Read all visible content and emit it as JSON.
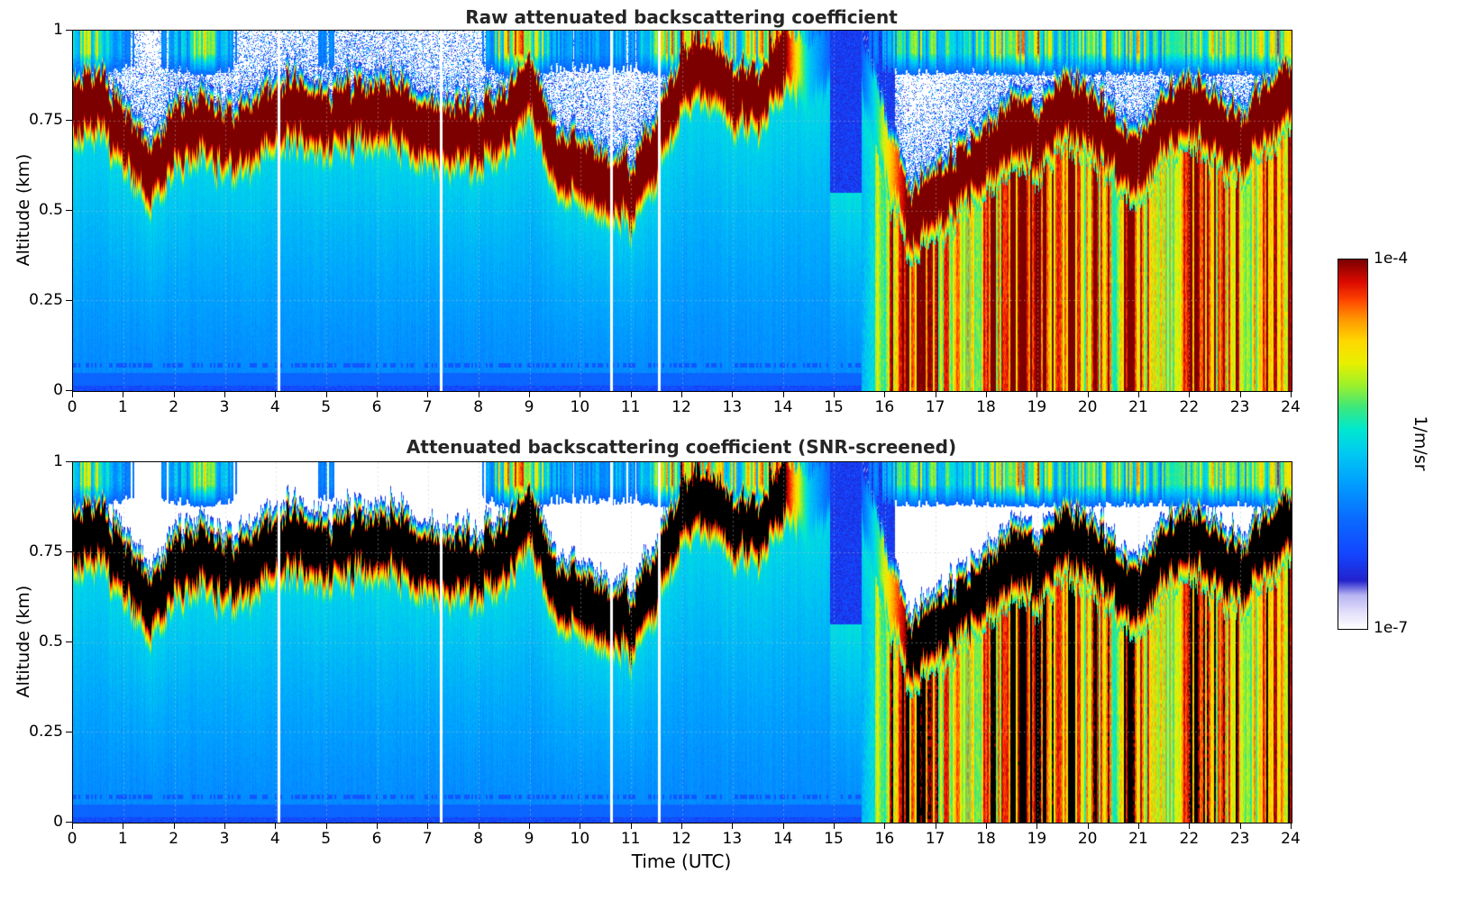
{
  "panels": [
    {
      "id": "raw",
      "title": "Raw attenuated backscattering coefficient"
    },
    {
      "id": "screened",
      "title": "Attenuated backscattering coefficient (SNR-screened)"
    }
  ],
  "axes": {
    "xlabel": "Time (UTC)",
    "ylabel": "Altitude (km)",
    "x_range": [
      0,
      24
    ],
    "y_range": [
      0,
      1
    ],
    "x_ticks": [
      0,
      1,
      2,
      3,
      4,
      5,
      6,
      7,
      8,
      9,
      10,
      11,
      12,
      13,
      14,
      15,
      16,
      17,
      18,
      19,
      20,
      21,
      22,
      23,
      24
    ],
    "y_ticks": [
      {
        "value": 1,
        "label": "1"
      },
      {
        "value": 0.75,
        "label": "0.75"
      },
      {
        "value": 0.5,
        "label": "0.5"
      },
      {
        "value": 0.25,
        "label": "0.25"
      },
      {
        "value": 0,
        "label": "0"
      }
    ],
    "grid": "dotted, every hour in x and every 0.25 km in y"
  },
  "colorbar": {
    "label": "1/m/sr",
    "top_label": "1e-4",
    "bottom_label": "1e-7",
    "scale": "log",
    "vmin": 1e-07,
    "vmax": 0.0001,
    "stops": [
      [
        0.0,
        "#ffffff"
      ],
      [
        0.045,
        "#e2defa"
      ],
      [
        0.09,
        "#b8b4f2"
      ],
      [
        0.13,
        "#2222cc"
      ],
      [
        0.2,
        "#1445ff"
      ],
      [
        0.3,
        "#0a6cff"
      ],
      [
        0.4,
        "#00a2ff"
      ],
      [
        0.48,
        "#00ccf0"
      ],
      [
        0.54,
        "#00e8d0"
      ],
      [
        0.6,
        "#3ce87c"
      ],
      [
        0.66,
        "#9cf02c"
      ],
      [
        0.72,
        "#e8f000"
      ],
      [
        0.78,
        "#ffd800"
      ],
      [
        0.84,
        "#ff9600"
      ],
      [
        0.89,
        "#ff4600"
      ],
      [
        0.94,
        "#dc0a00"
      ],
      [
        1.0,
        "#7c0000"
      ]
    ],
    "overflow_color_screened": "#000000"
  },
  "chart_data": [
    {
      "type": "heatmap",
      "title": "Raw attenuated backscattering coefficient",
      "xlabel": "Time (UTC)",
      "ylabel": "Altitude (km)",
      "x_range_utc_h": [
        0,
        24
      ],
      "y_range_km": [
        0,
        1
      ],
      "color_scale": {
        "type": "log",
        "vmin": 1e-07,
        "vmax": 0.0001,
        "units": "1/m/sr"
      },
      "field": {
        "time_h": [
          0,
          0.5,
          1,
          1.5,
          2,
          2.5,
          3,
          3.5,
          4,
          4.5,
          5,
          5.5,
          6,
          6.5,
          7,
          7.5,
          8,
          8.5,
          9,
          9.5,
          10,
          10.5,
          11,
          11.5,
          12,
          12.5,
          13,
          13.5,
          14,
          14.5,
          15,
          15.5,
          16,
          16.5,
          17,
          17.5,
          18,
          18.5,
          19,
          19.5,
          20,
          20.5,
          21,
          21.5,
          22,
          22.5,
          23,
          23.5,
          24
        ],
        "layer_center_km": [
          0.8,
          0.82,
          0.72,
          0.62,
          0.72,
          0.76,
          0.7,
          0.74,
          0.78,
          0.8,
          0.76,
          0.78,
          0.8,
          0.78,
          0.74,
          0.73,
          0.72,
          0.76,
          0.85,
          0.66,
          0.62,
          0.6,
          0.56,
          0.7,
          0.88,
          0.92,
          0.85,
          0.82,
          0.95,
          0.9,
          0.95,
          0.95,
          0.7,
          0.5,
          0.55,
          0.6,
          0.66,
          0.75,
          0.72,
          0.8,
          0.78,
          0.7,
          0.62,
          0.76,
          0.8,
          0.76,
          0.7,
          0.8,
          0.85
        ],
        "layer_strength": [
          1,
          1,
          1,
          1,
          1,
          1,
          1,
          1,
          1,
          1,
          1,
          1,
          1,
          1,
          1,
          1,
          1,
          1,
          1,
          1,
          1,
          1,
          1,
          1,
          1,
          1,
          1,
          1,
          1,
          0.3,
          0,
          0,
          0.6,
          1,
          1,
          1,
          1,
          1,
          1,
          1,
          1,
          1,
          1,
          1,
          1,
          1,
          1,
          1,
          1
        ],
        "precip_intensity": [
          0,
          0,
          0,
          0,
          0,
          0,
          0,
          0,
          0,
          0,
          0,
          0,
          0,
          0,
          0,
          0,
          0,
          0,
          0,
          0,
          0,
          0,
          0,
          0,
          0,
          0,
          0,
          0,
          0,
          0,
          0,
          0,
          0.4,
          0.9,
          0.8,
          0.6,
          0.9,
          1,
          1,
          0.9,
          0.6,
          0.5,
          0.8,
          0.6,
          0.8,
          0.9,
          0.6,
          0.8,
          0.9
        ],
        "dark_sky_above": [
          0,
          0,
          0,
          0,
          0,
          0,
          0,
          0,
          0,
          0,
          0,
          0,
          0,
          0,
          0,
          0,
          0,
          0,
          0,
          0,
          0,
          0,
          0,
          0,
          0,
          0,
          0,
          0,
          0,
          0.8,
          1,
          1,
          0.5,
          0,
          0,
          0,
          0,
          0,
          0,
          0,
          0,
          0,
          0,
          0,
          0,
          0,
          0,
          0,
          0
        ],
        "top_cloud": [
          0.8,
          0.6,
          0.2,
          0,
          0.3,
          0.7,
          0.3,
          0,
          0,
          0,
          0.2,
          0,
          0,
          0,
          0,
          0,
          0,
          0.8,
          0.9,
          0.3,
          0.2,
          0.4,
          0.2,
          0.7,
          0.9,
          0.8,
          0.7,
          0.8,
          1,
          0.3,
          0,
          0,
          0.3,
          0.6,
          0.5,
          0.4,
          0.6,
          0.7,
          0.8,
          0.6,
          0.5,
          0.6,
          0.7,
          0.5,
          0.6,
          0.7,
          0.5,
          0.7,
          0.9
        ],
        "gap_times_h": [
          4.05,
          7.25,
          10.6,
          11.55
        ]
      }
    },
    {
      "type": "heatmap",
      "title": "Attenuated backscattering coefficient (SNR-screened)",
      "xlabel": "Time (UTC)",
      "ylabel": "Altitude (km)",
      "x_range_utc_h": [
        0,
        24
      ],
      "y_range_km": [
        0,
        1
      ],
      "color_scale": {
        "type": "log",
        "vmin": 1e-07,
        "vmax": 0.0001,
        "units": "1/m/sr"
      },
      "field_ref": 0,
      "mask": "low-SNR region above cloud layer shown white; values at/above 1e-4 rendered black"
    }
  ]
}
